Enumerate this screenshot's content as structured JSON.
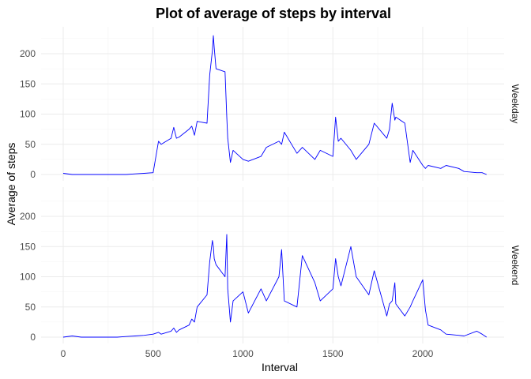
{
  "chart_data": {
    "type": "line",
    "title": "Plot of average of steps by interval",
    "xlabel": "Interval",
    "ylabel": "Average of steps",
    "xlim": [
      0,
      2355
    ],
    "ylim": [
      0,
      235
    ],
    "x_ticks": [
      0,
      500,
      1000,
      1500,
      2000
    ],
    "y_ticks": [
      0,
      50,
      100,
      150,
      200
    ],
    "grid": true,
    "legend": "none",
    "line_color": "#0000ff",
    "facets": [
      {
        "label": "Weekday",
        "series": [
          {
            "x": [
              0,
              50,
              100,
              150,
              200,
              250,
              300,
              350,
              400,
              450,
              500,
              530,
              545,
              600,
              615,
              630,
              645,
              700,
              715,
              730,
              745,
              800,
              815,
              830,
              835,
              840,
              850,
              900,
              910,
              915,
              930,
              945,
              1000,
              1030,
              1100,
              1130,
              1200,
              1215,
              1230,
              1300,
              1330,
              1400,
              1430,
              1500,
              1515,
              1530,
              1545,
              1600,
              1630,
              1700,
              1730,
              1800,
              1815,
              1830,
              1845,
              1850,
              1900,
              1930,
              1945,
              2000,
              2015,
              2030,
              2100,
              2130,
              2200,
              2230,
              2300,
              2330,
              2355
            ],
            "y": [
              2,
              0,
              0,
              0,
              0,
              0,
              0,
              0,
              1,
              2,
              3,
              55,
              50,
              60,
              78,
              60,
              62,
              75,
              80,
              65,
              88,
              85,
              165,
              205,
              230,
              210,
              175,
              170,
              95,
              60,
              20,
              40,
              25,
              22,
              30,
              45,
              55,
              50,
              70,
              35,
              45,
              25,
              40,
              30,
              95,
              55,
              60,
              40,
              25,
              50,
              85,
              60,
              75,
              118,
              90,
              95,
              85,
              20,
              40,
              15,
              10,
              15,
              10,
              15,
              10,
              5,
              3,
              3,
              0
            ]
          }
        ]
      },
      {
        "label": "Weekend",
        "series": [
          {
            "x": [
              0,
              50,
              100,
              150,
              200,
              250,
              300,
              350,
              400,
              450,
              500,
              530,
              545,
              600,
              615,
              630,
              645,
              700,
              715,
              730,
              745,
              800,
              815,
              830,
              835,
              840,
              850,
              900,
              910,
              915,
              930,
              945,
              1000,
              1030,
              1100,
              1130,
              1200,
              1215,
              1230,
              1300,
              1330,
              1400,
              1430,
              1500,
              1515,
              1530,
              1545,
              1600,
              1630,
              1700,
              1730,
              1800,
              1815,
              1830,
              1845,
              1850,
              1900,
              1930,
              1945,
              2000,
              2015,
              2030,
              2100,
              2130,
              2200,
              2230,
              2300,
              2330,
              2355
            ],
            "y": [
              0,
              2,
              0,
              0,
              0,
              0,
              0,
              1,
              2,
              3,
              5,
              8,
              5,
              10,
              15,
              8,
              12,
              20,
              30,
              25,
              50,
              70,
              125,
              160,
              150,
              130,
              120,
              100,
              170,
              80,
              25,
              60,
              75,
              40,
              80,
              60,
              100,
              145,
              60,
              50,
              135,
              90,
              60,
              80,
              130,
              100,
              85,
              150,
              100,
              70,
              110,
              35,
              55,
              60,
              90,
              55,
              35,
              50,
              60,
              95,
              45,
              20,
              12,
              5,
              3,
              2,
              10,
              5,
              0
            ]
          }
        ]
      }
    ]
  }
}
